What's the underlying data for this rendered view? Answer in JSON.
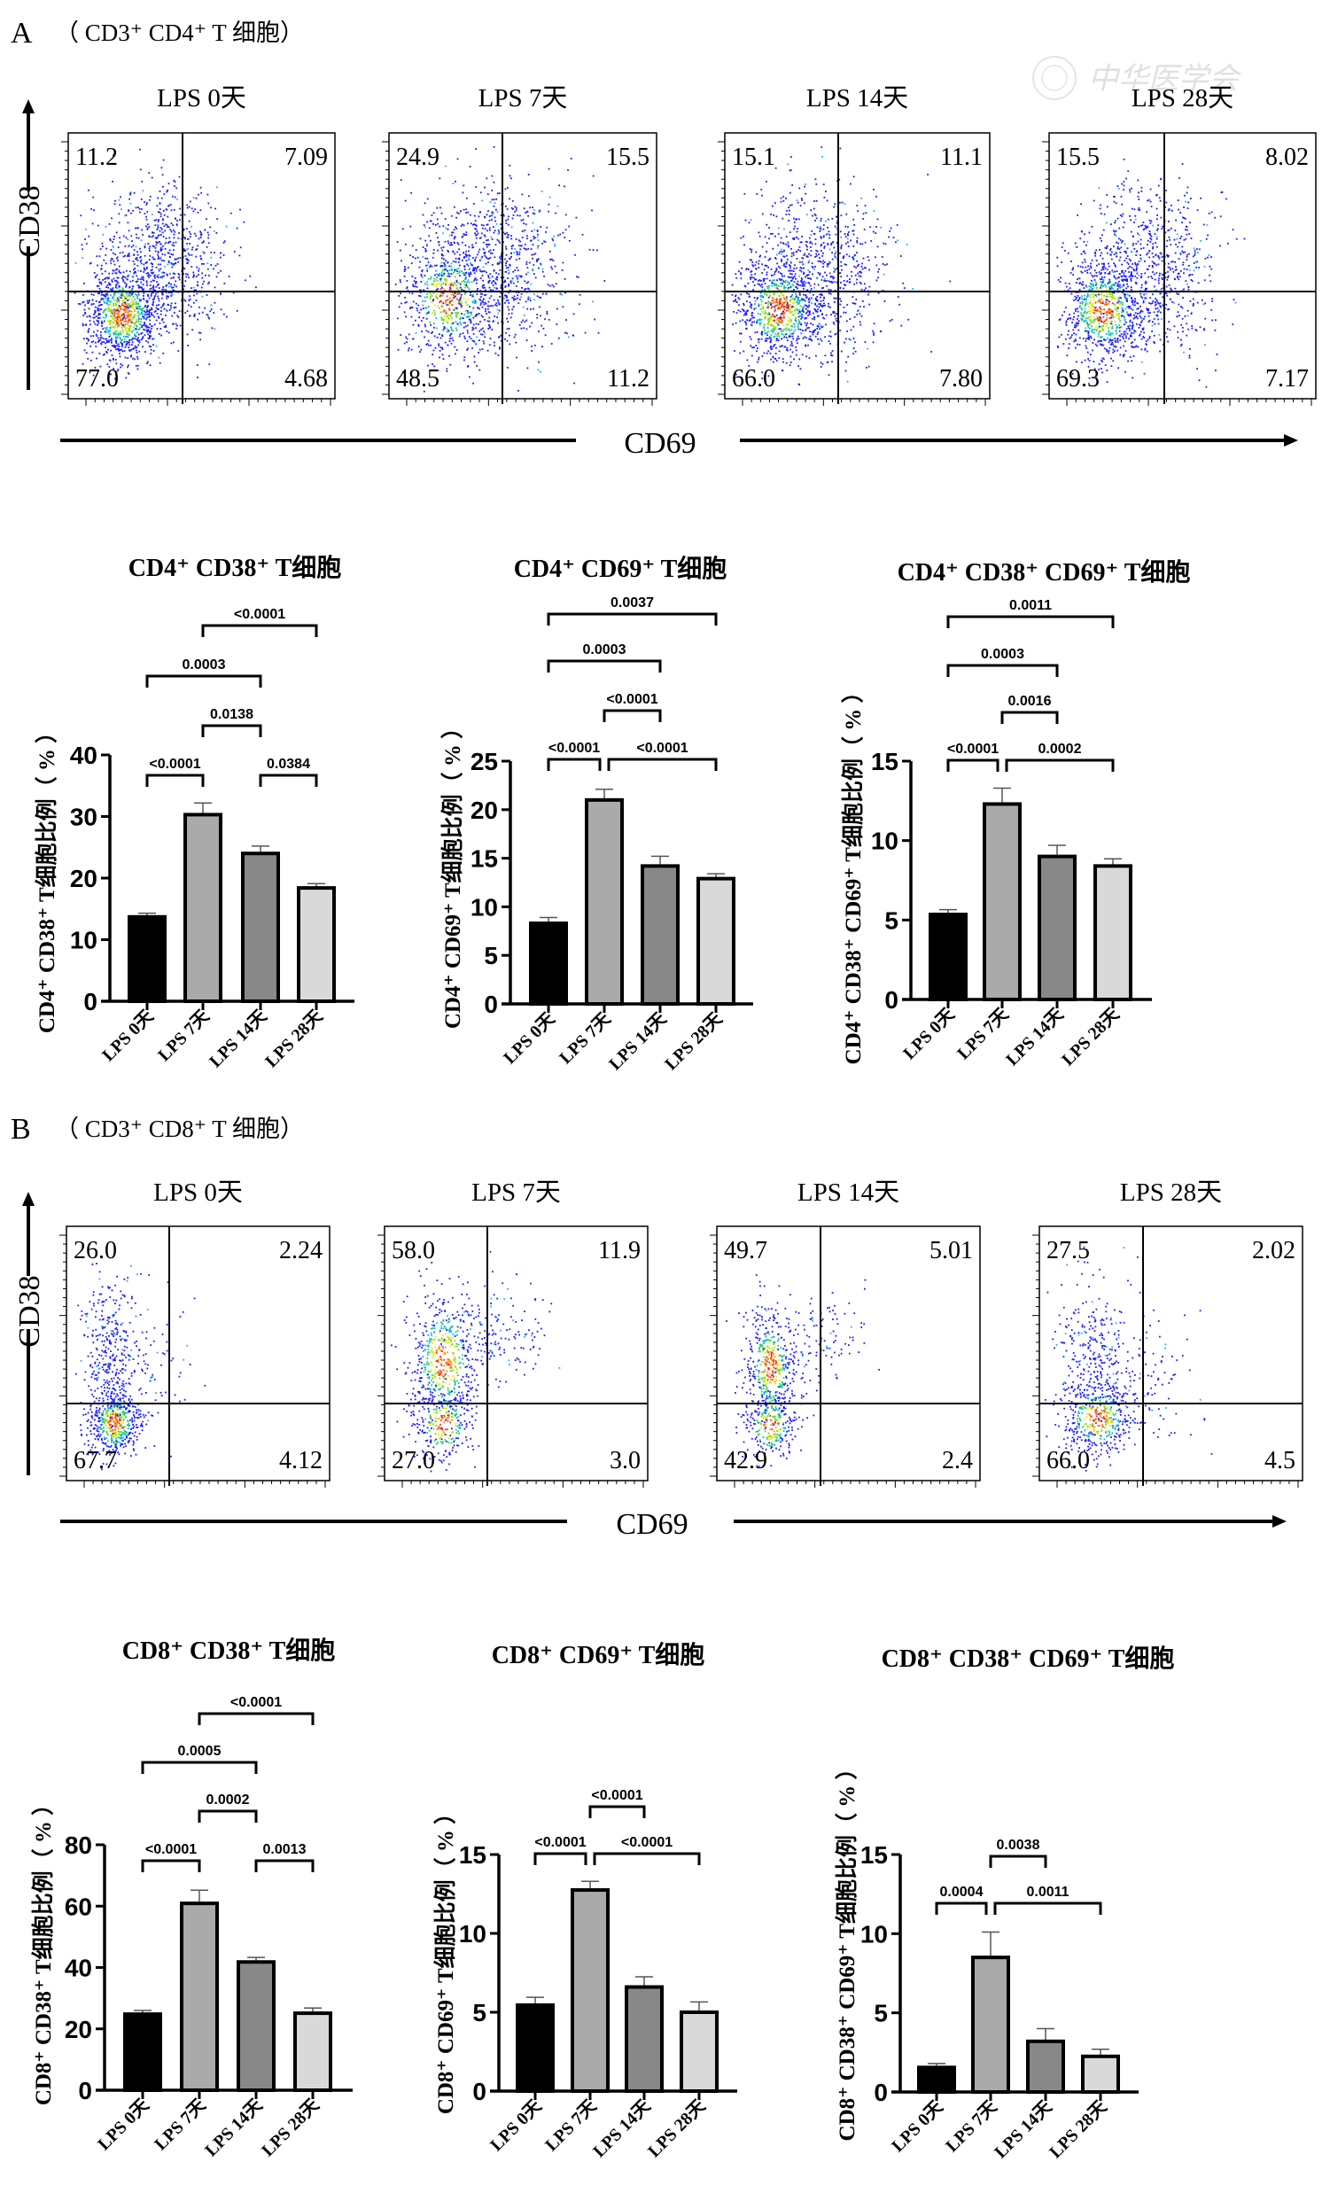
{
  "watermark": "中华医学会",
  "sections": [
    {
      "label": "A",
      "subtitle": "（ CD3⁺ CD4⁺ T 细胞）",
      "flow": {
        "x_axis_label": "CD69",
        "y_axis_label": "CD38",
        "plots": [
          {
            "title": "LPS 0天",
            "q_ul": "11.2",
            "q_ur": "7.09",
            "q_ll": "77.0",
            "q_lr": "4.68"
          },
          {
            "title": "LPS 7天",
            "q_ul": "24.9",
            "q_ur": "15.5",
            "q_ll": "48.5",
            "q_lr": "11.2"
          },
          {
            "title": "LPS 14天",
            "q_ul": "15.1",
            "q_ur": "11.1",
            "q_ll": "66.0",
            "q_lr": "7.80"
          },
          {
            "title": "LPS 28天",
            "q_ul": "15.5",
            "q_ur": "8.02",
            "q_ll": "69.3",
            "q_lr": "7.17"
          }
        ]
      }
    },
    {
      "label": "B",
      "subtitle": "（ CD3⁺ CD8⁺ T 细胞）",
      "flow": {
        "x_axis_label": "CD69",
        "y_axis_label": "CD38",
        "plots": [
          {
            "title": "LPS 0天",
            "q_ul": "26.0",
            "q_ur": "2.24",
            "q_ll": "67.7",
            "q_lr": "4.12"
          },
          {
            "title": "LPS 7天",
            "q_ul": "58.0",
            "q_ur": "11.9",
            "q_ll": "27.0",
            "q_lr": "3.0"
          },
          {
            "title": "LPS 14天",
            "q_ul": "49.7",
            "q_ur": "5.01",
            "q_ll": "42.9",
            "q_lr": "2.4"
          },
          {
            "title": "LPS 28天",
            "q_ul": "27.5",
            "q_ur": "2.02",
            "q_ll": "66.0",
            "q_lr": "4.5"
          }
        ]
      }
    }
  ],
  "chart_data": [
    {
      "type": "bar",
      "title": "CD4⁺ CD38⁺ T细胞",
      "ylabel": "CD4⁺ CD38⁺ T细胞比例（ % ）",
      "xlabel": "",
      "categories": [
        "LPS 0天",
        "LPS 7天",
        "LPS 14天",
        "LPS 28天"
      ],
      "values": [
        13.7,
        30.3,
        24.0,
        18.4
      ],
      "error_plus": [
        0.6,
        1.9,
        1.2,
        0.7
      ],
      "colors": [
        "#000000",
        "#aaaaaa",
        "#888888",
        "#d9d9d9"
      ],
      "ylim": [
        0,
        40
      ],
      "yticks": [
        "0",
        "10",
        "20",
        "30",
        "40"
      ],
      "grid": false,
      "comparisons": [
        {
          "from": 1,
          "to": 3,
          "p": "<0.0001"
        },
        {
          "from": 0,
          "to": 2,
          "p": "0.0003"
        },
        {
          "from": 1,
          "to": 2,
          "p": "0.0138"
        },
        {
          "from": 0,
          "to": 1,
          "p": "<0.0001"
        },
        {
          "from": 2,
          "to": 3,
          "p": "0.0384"
        }
      ]
    },
    {
      "type": "bar",
      "title": "CD4⁺ CD69⁺ T细胞",
      "ylabel": "CD4⁺ CD69⁺ T细胞比例（ % ）",
      "xlabel": "",
      "categories": [
        "LPS 0天",
        "LPS 7天",
        "LPS 14天",
        "LPS 28天"
      ],
      "values": [
        8.3,
        21.0,
        14.2,
        12.9
      ],
      "error_plus": [
        0.6,
        1.1,
        1.0,
        0.5
      ],
      "colors": [
        "#000000",
        "#aaaaaa",
        "#888888",
        "#d9d9d9"
      ],
      "ylim": [
        0,
        25
      ],
      "yticks": [
        "0",
        "5",
        "10",
        "15",
        "20",
        "25"
      ],
      "grid": false,
      "comparisons": [
        {
          "from": 0,
          "to": 3,
          "p": "0.0037"
        },
        {
          "from": 0,
          "to": 2,
          "p": "0.0003"
        },
        {
          "from": 1,
          "to": 2,
          "p": "<0.0001"
        },
        {
          "from": 0,
          "to": 1,
          "p": "<0.0001"
        },
        {
          "from": 1,
          "to": 3,
          "p": "<0.0001"
        }
      ]
    },
    {
      "type": "bar",
      "title": "CD4⁺ CD38⁺ CD69⁺ T细胞",
      "ylabel": "CD4⁺ CD38⁺ CD69⁺ T细胞比例（ % ）",
      "xlabel": "",
      "categories": [
        "LPS 0天",
        "LPS 7天",
        "LPS 14天",
        "LPS 28天"
      ],
      "values": [
        5.35,
        12.3,
        9.0,
        8.4
      ],
      "error_plus": [
        0.3,
        1.0,
        0.7,
        0.45
      ],
      "colors": [
        "#000000",
        "#aaaaaa",
        "#888888",
        "#d9d9d9"
      ],
      "ylim": [
        0,
        15
      ],
      "yticks": [
        "0",
        "5",
        "10",
        "15"
      ],
      "grid": false,
      "comparisons": [
        {
          "from": 0,
          "to": 3,
          "p": "0.0011"
        },
        {
          "from": 0,
          "to": 2,
          "p": "0.0003"
        },
        {
          "from": 1,
          "to": 2,
          "p": "0.0016"
        },
        {
          "from": 0,
          "to": 1,
          "p": "<0.0001"
        },
        {
          "from": 1,
          "to": 3,
          "p": "0.0002"
        }
      ]
    },
    {
      "type": "bar",
      "title": "CD8⁺ CD38⁺ T细胞",
      "ylabel": "CD8⁺ CD38⁺ T细胞比例（ % ）",
      "xlabel": "",
      "categories": [
        "LPS 0天",
        "LPS 7天",
        "LPS 14天",
        "LPS 28天"
      ],
      "values": [
        24.8,
        60.9,
        41.8,
        25.1
      ],
      "error_plus": [
        1.2,
        4.3,
        1.5,
        1.7
      ],
      "colors": [
        "#000000",
        "#aaaaaa",
        "#888888",
        "#d9d9d9"
      ],
      "ylim": [
        0,
        80
      ],
      "yticks": [
        "0",
        "20",
        "40",
        "60",
        "80"
      ],
      "grid": false,
      "comparisons": [
        {
          "from": 1,
          "to": 3,
          "p": "<0.0001"
        },
        {
          "from": 0,
          "to": 2,
          "p": "0.0005"
        },
        {
          "from": 1,
          "to": 2,
          "p": "0.0002"
        },
        {
          "from": 0,
          "to": 1,
          "p": "<0.0001"
        },
        {
          "from": 2,
          "to": 3,
          "p": "0.0013"
        }
      ]
    },
    {
      "type": "bar",
      "title": "CD8⁺ CD69⁺ T细胞",
      "ylabel": "CD8⁺ CD69⁺ T细胞比例（ % ）",
      "xlabel": "",
      "categories": [
        "LPS 0天",
        "LPS 7天",
        "LPS 14天",
        "LPS 28天"
      ],
      "values": [
        5.45,
        12.75,
        6.6,
        5.0
      ],
      "error_plus": [
        0.5,
        0.55,
        0.65,
        0.65
      ],
      "colors": [
        "#000000",
        "#aaaaaa",
        "#888888",
        "#d9d9d9"
      ],
      "ylim": [
        0,
        15
      ],
      "yticks": [
        "0",
        "5",
        "10",
        "15"
      ],
      "grid": false,
      "comparisons": [
        {
          "from": 1,
          "to": 2,
          "p": "<0.0001"
        },
        {
          "from": 0,
          "to": 1,
          "p": "<0.0001"
        },
        {
          "from": 1,
          "to": 3,
          "p": "<0.0001"
        }
      ]
    },
    {
      "type": "bar",
      "title": "CD8⁺ CD38⁺ CD69⁺ T细胞",
      "ylabel": "CD8⁺ CD38⁺ CD69⁺ T细胞比例（ % ）",
      "xlabel": "",
      "categories": [
        "LPS 0天",
        "LPS 7天",
        "LPS 14天",
        "LPS 28天"
      ],
      "values": [
        1.55,
        8.5,
        3.2,
        2.25
      ],
      "error_plus": [
        0.25,
        1.6,
        0.8,
        0.45
      ],
      "colors": [
        "#000000",
        "#aaaaaa",
        "#888888",
        "#d9d9d9"
      ],
      "ylim": [
        0,
        15
      ],
      "yticks": [
        "0",
        "5",
        "10",
        "15"
      ],
      "grid": false,
      "comparisons": [
        {
          "from": 1,
          "to": 2,
          "p": "0.0038"
        },
        {
          "from": 0,
          "to": 1,
          "p": "0.0004"
        },
        {
          "from": 1,
          "to": 3,
          "p": "0.0011"
        }
      ]
    }
  ]
}
